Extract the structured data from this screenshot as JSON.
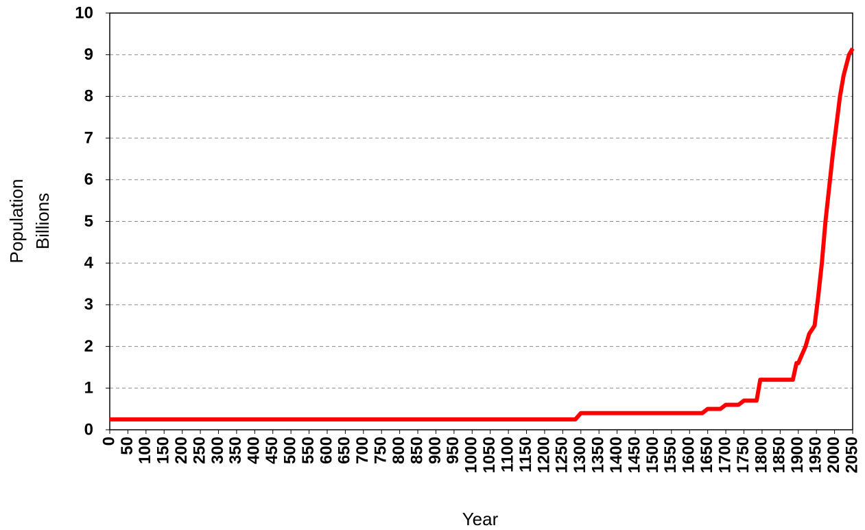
{
  "chart_data": {
    "type": "line",
    "xlabel": "Year",
    "ylabel": [
      "Population",
      "Billions"
    ],
    "x": [
      0,
      1285,
      1300,
      1635,
      1650,
      1685,
      1700,
      1735,
      1750,
      1785,
      1795,
      1885,
      1895,
      1900,
      1910,
      1920,
      1930,
      1945,
      1955,
      1965,
      1975,
      1985,
      1995,
      2005,
      2015,
      2025,
      2040,
      2050
    ],
    "series": [
      {
        "name": "Population",
        "color": "#ff0000",
        "values": [
          0.25,
          0.25,
          0.4,
          0.4,
          0.5,
          0.5,
          0.6,
          0.6,
          0.7,
          0.7,
          1.2,
          1.2,
          1.6,
          1.6,
          1.8,
          2.0,
          2.3,
          2.5,
          3.2,
          4.0,
          5.0,
          5.8,
          6.6,
          7.3,
          8.0,
          8.5,
          9.0,
          9.15
        ]
      }
    ],
    "xlim": [
      0,
      2050
    ],
    "xticks": [
      0,
      50,
      100,
      150,
      200,
      250,
      300,
      350,
      400,
      450,
      500,
      550,
      600,
      650,
      700,
      750,
      800,
      850,
      900,
      950,
      1000,
      1050,
      1100,
      1150,
      1200,
      1250,
      1300,
      1350,
      1400,
      1450,
      1500,
      1550,
      1600,
      1650,
      1700,
      1750,
      1800,
      1850,
      1900,
      1950,
      2000,
      2050
    ],
    "ylim": [
      0,
      10
    ],
    "yticks": [
      0,
      1,
      2,
      3,
      4,
      5,
      6,
      7,
      8,
      9,
      10
    ],
    "grid": true
  }
}
